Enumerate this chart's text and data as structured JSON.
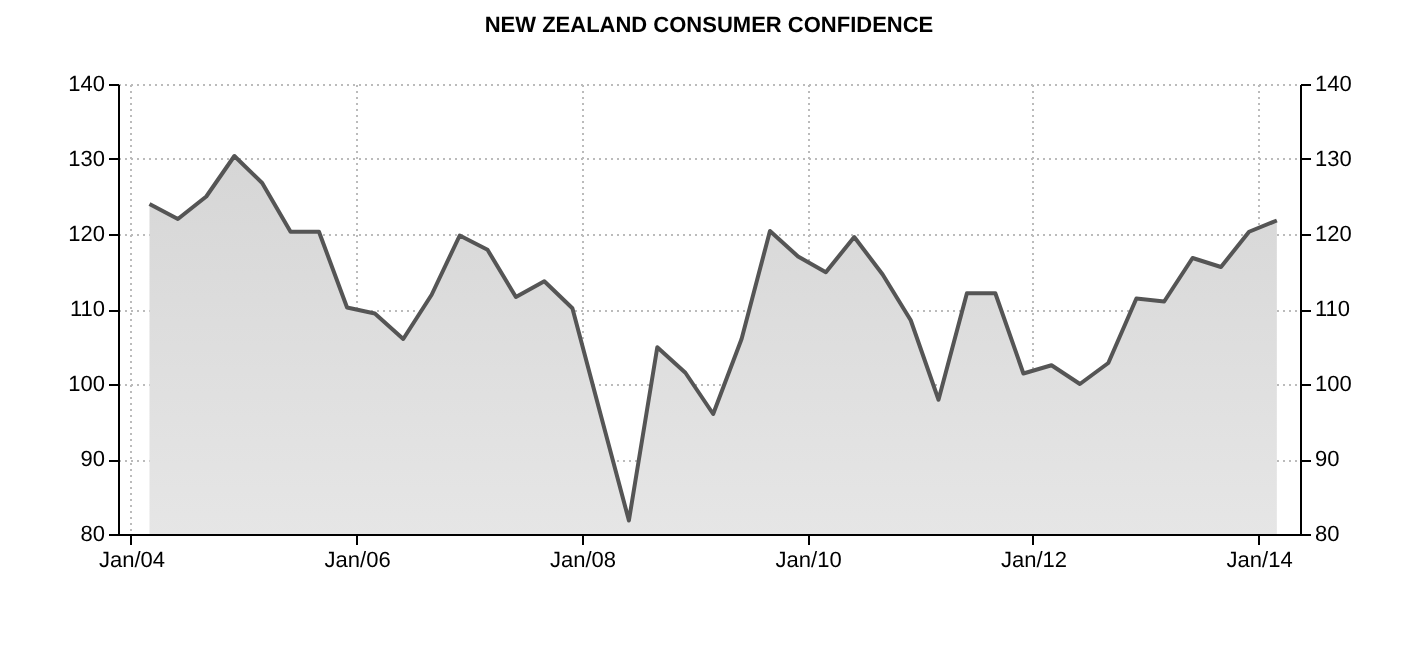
{
  "chart_data": {
    "type": "area",
    "title": "NEW ZEALAND CONSUMER CONFIDENCE",
    "x": [
      "2004-03-01",
      "2004-06-01",
      "2004-09-01",
      "2004-12-01",
      "2005-03-01",
      "2005-06-01",
      "2005-09-01",
      "2005-12-01",
      "2006-03-01",
      "2006-06-01",
      "2006-09-01",
      "2006-12-01",
      "2007-03-01",
      "2007-06-01",
      "2007-09-01",
      "2007-12-01",
      "2008-03-01",
      "2008-06-01",
      "2008-09-01",
      "2008-12-01",
      "2009-03-01",
      "2009-06-01",
      "2009-09-01",
      "2009-12-01",
      "2010-03-01",
      "2010-06-01",
      "2010-09-01",
      "2010-12-01",
      "2011-03-01",
      "2011-06-01",
      "2011-09-01",
      "2011-12-01",
      "2012-03-01",
      "2012-06-01",
      "2012-09-01",
      "2012-12-01",
      "2013-03-01",
      "2013-06-01",
      "2013-09-01",
      "2013-12-01",
      "2014-03-01"
    ],
    "series": [
      {
        "color": "#555555",
        "values": [
          124,
          122,
          125,
          130.4,
          126.8,
          120.3,
          120.3,
          110.2,
          109.4,
          106,
          111.9,
          119.8,
          117.9,
          111.6,
          113.7,
          110.1,
          96,
          81.8,
          104.9,
          101.5,
          96,
          106,
          120.4,
          117,
          114.9,
          119.6,
          114.6,
          108.5,
          97.9,
          112.1,
          112.1,
          101.4,
          102.5,
          100,
          102.8,
          111.4,
          111,
          116.8,
          115.6,
          120.3,
          121.8
        ]
      }
    ],
    "xlim": [
      "2003-11-20",
      "2014-05-15"
    ],
    "xticks": [
      {
        "value": "2004-01-01",
        "label": "Jan/04"
      },
      {
        "value": "2006-01-01",
        "label": "Jan/06"
      },
      {
        "value": "2008-01-01",
        "label": "Jan/08"
      },
      {
        "value": "2010-01-01",
        "label": "Jan/10"
      },
      {
        "value": "2012-01-01",
        "label": "Jan/12"
      },
      {
        "value": "2014-01-01",
        "label": "Jan/14"
      }
    ],
    "ylim": [
      80,
      140
    ],
    "yticks": [
      80,
      90,
      100,
      110,
      120,
      130,
      140
    ],
    "y2lim": [
      80,
      140
    ],
    "y2ticks": [
      80,
      90,
      100,
      110,
      120,
      130,
      140
    ],
    "grid": true
  }
}
